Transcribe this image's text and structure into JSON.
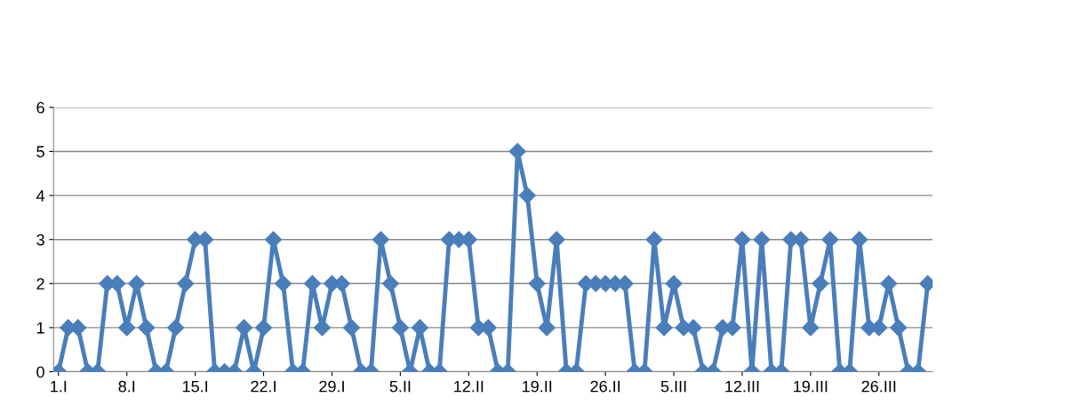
{
  "chart_data": {
    "type": "line",
    "categories": [
      "1.I",
      null,
      null,
      null,
      null,
      null,
      null,
      "8.I",
      null,
      null,
      null,
      null,
      null,
      null,
      "15.I",
      null,
      null,
      null,
      null,
      null,
      null,
      "22.I",
      null,
      null,
      null,
      null,
      null,
      null,
      "29.I",
      null,
      null,
      null,
      null,
      null,
      null,
      "5.II",
      null,
      null,
      null,
      null,
      null,
      null,
      "12.II",
      null,
      null,
      null,
      null,
      null,
      null,
      "19.II",
      null,
      null,
      null,
      null,
      null,
      null,
      "26.II",
      null,
      null,
      null,
      null,
      null,
      null,
      "5.III",
      null,
      null,
      null,
      null,
      null,
      null,
      "12.III",
      null,
      null,
      null,
      null,
      null,
      null,
      "19.III",
      null,
      null,
      null,
      null,
      null,
      null,
      "26.III",
      null,
      null,
      null,
      null,
      null
    ],
    "series": [
      {
        "color": "#4a7ebb",
        "values": [
          0,
          1,
          1,
          0,
          0,
          2,
          2,
          1,
          2,
          1,
          0,
          0,
          1,
          2,
          3,
          3,
          0,
          0,
          0,
          1,
          0,
          1,
          3,
          2,
          0,
          0,
          2,
          1,
          2,
          2,
          1,
          0,
          0,
          3,
          2,
          1,
          0,
          1,
          0,
          0,
          3,
          3,
          3,
          1,
          1,
          0,
          0,
          5,
          4,
          2,
          1,
          3,
          0,
          0,
          2,
          2,
          2,
          2,
          2,
          0,
          0,
          3,
          1,
          2,
          1,
          1,
          0,
          0,
          1,
          1,
          3,
          0,
          3,
          0,
          0,
          3,
          3,
          1,
          2,
          3,
          0,
          0,
          3,
          1,
          1,
          2,
          1,
          0,
          0,
          2
        ]
      }
    ],
    "ylim": [
      0,
      6
    ],
    "yticks": [
      0,
      1,
      2,
      3,
      4,
      5,
      6
    ],
    "grid": "y",
    "marker": "diamond",
    "line_style": "solid"
  }
}
